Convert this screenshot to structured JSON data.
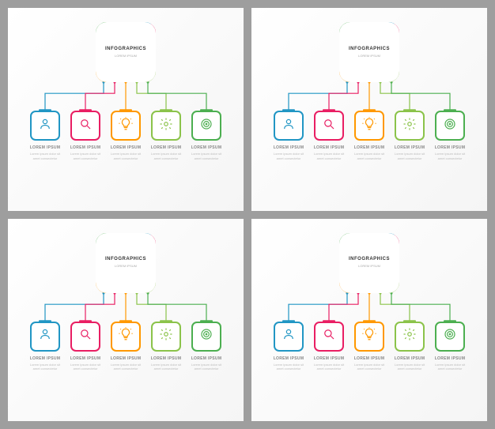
{
  "background_color": "#9e9e9e",
  "panel_bg": "#ffffff",
  "main": {
    "title": "INFOGRAPHICS",
    "subtitle": "LOREM IPSUM",
    "border_radius": 14,
    "size": 76,
    "segment_colors": [
      "#2196c4",
      "#e91e63",
      "#8bc34a",
      "#ff9800",
      "#4caf50"
    ]
  },
  "connector": {
    "stroke_width": 1.2,
    "dot_radius": 1.5
  },
  "nodes": [
    {
      "icon": "person",
      "color": "#2196c4",
      "title": "LOREM IPSUM",
      "text": "Lorem ipsum dolor sit amet consectetur"
    },
    {
      "icon": "search",
      "color": "#e91e63",
      "title": "LOREM IPSUM",
      "text": "Lorem ipsum dolor sit amet consectetur"
    },
    {
      "icon": "bulb",
      "color": "#ff9800",
      "title": "LOREM IPSUM",
      "text": "Lorem ipsum dolor sit amet consectetur"
    },
    {
      "icon": "gear",
      "color": "#8bc34a",
      "title": "LOREM IPSUM",
      "text": "Lorem ipsum dolor sit amet consectetur"
    },
    {
      "icon": "target",
      "color": "#4caf50",
      "title": "LOREM IPSUM",
      "text": "Lorem ipsum dolor sit amet consectetur"
    }
  ],
  "node_box": {
    "size": 38,
    "border_radius": 7,
    "border_width": 2,
    "icon_size": 18
  },
  "typography": {
    "main_title_size": 6,
    "main_title_weight": 700,
    "main_title_color": "#333333",
    "main_sub_size": 4,
    "main_sub_color": "#aaaaaa",
    "node_title_size": 5,
    "node_title_color": "#888888",
    "node_text_size": 4,
    "node_text_color": "#bbbbbb"
  },
  "panels": 4
}
